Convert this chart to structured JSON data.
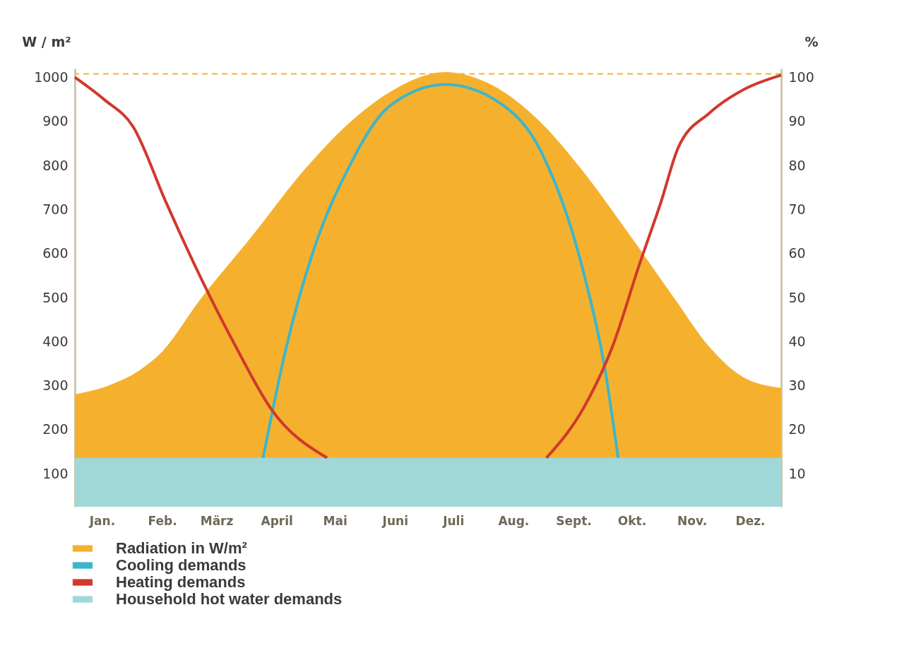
{
  "chart_data": {
    "type": "line",
    "xlabel": null,
    "ylabel": "W / m²",
    "y2label": "%",
    "xlim": [
      "--01-01",
      "--12-31"
    ],
    "xticks": [
      {
        "value": "--01-15",
        "label": "Jan."
      },
      {
        "value": "--02-15",
        "label": "Feb."
      },
      {
        "value": "--03-15",
        "label": "März"
      },
      {
        "value": "--04-15",
        "label": "April"
      },
      {
        "value": "--05-15",
        "label": "Mai"
      },
      {
        "value": "--06-15",
        "label": "Juni"
      },
      {
        "value": "--07-15",
        "label": "Juli"
      },
      {
        "value": "--08-15",
        "label": "Aug."
      },
      {
        "value": "--09-15",
        "label": "Sept."
      },
      {
        "value": "--10-15",
        "label": "Okt."
      },
      {
        "value": "--11-15",
        "label": "Nov."
      },
      {
        "value": "--12-15",
        "label": "Dez."
      }
    ],
    "ylim": [
      25,
      1020
    ],
    "yticks": [
      100,
      200,
      300,
      400,
      500,
      600,
      700,
      800,
      900,
      1000
    ],
    "y2lim": [
      2.5,
      102
    ],
    "y2ticks": [
      10,
      20,
      30,
      40,
      50,
      60,
      70,
      80,
      90,
      100
    ],
    "grid": false,
    "legend": "bottom",
    "marker": "none",
    "line_style": "solid",
    "ref_lines": [
      {
        "axis": "y",
        "value": 1008,
        "label": null,
        "color": "#f5b335",
        "line_style": "dashed"
      }
    ],
    "series": [
      {
        "name": "Radiation in W/m²",
        "type": "area",
        "color": "#f5b12e",
        "x": [
          "--01-01",
          "--01-20",
          "--02-03",
          "--02-14",
          "--03-07",
          "--04-02",
          "--04-30",
          "--05-22",
          "--06-12",
          "--07-11",
          "--08-01",
          "--08-26",
          "--09-20",
          "--10-12",
          "--11-06",
          "--11-24",
          "--12-12",
          "--12-31"
        ],
        "values": [
          280,
          303,
          334,
          373,
          498,
          638,
          794,
          895,
          966,
          1012,
          989,
          911,
          786,
          654,
          498,
          388,
          318,
          295
        ]
      },
      {
        "name": "Cooling demands",
        "axis": "y2",
        "color": "#3db5cc",
        "x": [
          "--04-08",
          "--04-20",
          "--05-04",
          "--05-22",
          "--06-12",
          "--07-11",
          "--08-08",
          "--08-30",
          "--09-20",
          "--10-01",
          "--10-08"
        ],
        "values": [
          13.6,
          38.8,
          60.7,
          79.4,
          93.4,
          98.4,
          94.2,
          82.5,
          56,
          34.2,
          13.6
        ]
      },
      {
        "name": "Heating demands",
        "axis": "y2",
        "color": "#d0392b",
        "x": [
          "--01-01",
          "--01-16",
          "--01-31",
          "--02-17",
          "--03-07",
          "--03-25",
          "--04-12",
          "--05-11",
          "--07-06",
          "--09-01",
          "--09-20",
          "--10-05",
          "--10-19",
          "--10-30",
          "--11-08",
          "--11-24",
          "--12-12",
          "--12-31"
        ],
        "values": [
          100,
          95,
          88.8,
          71.6,
          54.4,
          38.8,
          24.8,
          13.6,
          null,
          13.6,
          24.8,
          38.8,
          57.6,
          71.6,
          84.1,
          91.9,
          97.3,
          100.5
        ]
      },
      {
        "name": "Household hot water demands",
        "type": "area",
        "color": "#a0d8d8",
        "x": [
          "--01-01",
          "--12-31"
        ],
        "values": [
          136,
          136
        ]
      }
    ]
  }
}
